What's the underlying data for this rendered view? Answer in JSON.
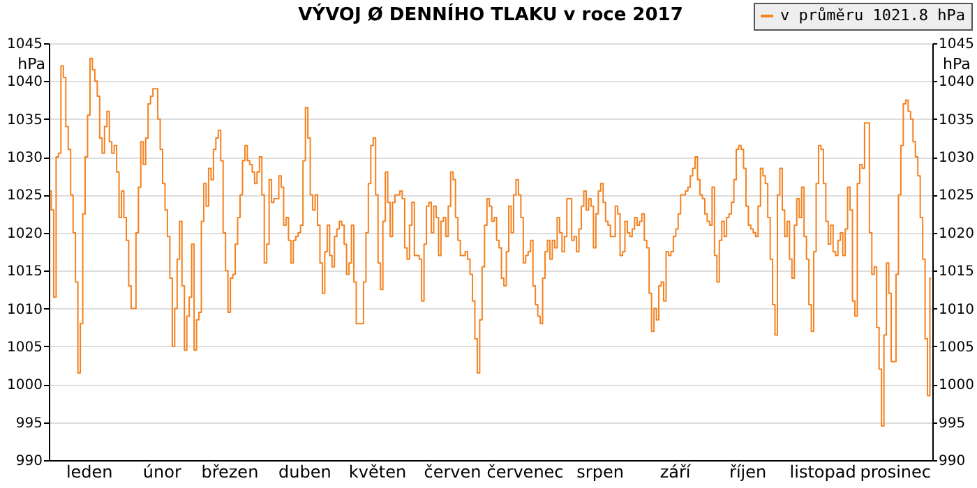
{
  "chart_data": {
    "type": "step",
    "title": "VÝVOJ Ø DENNÍHO TLAKU v roce 2017",
    "ylabel": "hPa",
    "y2label": "hPa",
    "categories": [
      null,
      null,
      null,
      null,
      null,
      null,
      null,
      null,
      null,
      null,
      null,
      null,
      null,
      null,
      null,
      null,
      "leden",
      null,
      null,
      null,
      null,
      null,
      null,
      null,
      null,
      null,
      null,
      null,
      null,
      null,
      null,
      null,
      null,
      null,
      null,
      null,
      null,
      null,
      null,
      null,
      null,
      null,
      null,
      null,
      null,
      null,
      "únor",
      null,
      null,
      null,
      null,
      null,
      null,
      null,
      null,
      null,
      null,
      null,
      null,
      null,
      null,
      null,
      null,
      null,
      null,
      null,
      null,
      null,
      null,
      null,
      null,
      null,
      null,
      null,
      "březen",
      null,
      null,
      null,
      null,
      null,
      null,
      null,
      null,
      null,
      null,
      null,
      null,
      null,
      null,
      null,
      null,
      null,
      null,
      null,
      null,
      null,
      null,
      null,
      null,
      null,
      null,
      null,
      null,
      null,
      null,
      "duben",
      null,
      null,
      null,
      null,
      null,
      null,
      null,
      null,
      null,
      null,
      null,
      null,
      null,
      null,
      null,
      null,
      null,
      null,
      null,
      null,
      null,
      null,
      null,
      null,
      null,
      null,
      null,
      null,
      null,
      "květen",
      null,
      null,
      null,
      null,
      null,
      null,
      null,
      null,
      null,
      null,
      null,
      null,
      null,
      null,
      null,
      null,
      null,
      null,
      null,
      null,
      null,
      null,
      null,
      null,
      null,
      null,
      null,
      null,
      null,
      null,
      "červen",
      null,
      null,
      null,
      null,
      null,
      null,
      null,
      null,
      null,
      null,
      null,
      null,
      null,
      null,
      null,
      null,
      null,
      null,
      null,
      null,
      null,
      null,
      null,
      null,
      null,
      null,
      null,
      null,
      null,
      "červenec",
      null,
      null,
      null,
      null,
      null,
      null,
      null,
      null,
      null,
      null,
      null,
      null,
      null,
      null,
      null,
      null,
      null,
      null,
      null,
      null,
      null,
      null,
      null,
      null,
      null,
      null,
      null,
      null,
      null,
      null,
      "srpen",
      null,
      null,
      null,
      null,
      null,
      null,
      null,
      null,
      null,
      null,
      null,
      null,
      null,
      null,
      null,
      null,
      null,
      null,
      null,
      null,
      null,
      null,
      null,
      null,
      null,
      null,
      null,
      null,
      null,
      null,
      "září",
      null,
      null,
      null,
      null,
      null,
      null,
      null,
      null,
      null,
      null,
      null,
      null,
      null,
      null,
      null,
      null,
      null,
      null,
      null,
      null,
      null,
      null,
      null,
      null,
      null,
      null,
      null,
      null,
      null,
      "říjen",
      null,
      null,
      null,
      null,
      null,
      null,
      null,
      null,
      null,
      null,
      null,
      null,
      null,
      null,
      null,
      null,
      null,
      null,
      null,
      null,
      null,
      null,
      null,
      null,
      null,
      null,
      null,
      null,
      null,
      null,
      "listopad",
      null,
      null,
      null,
      null,
      null,
      null,
      null,
      null,
      null,
      null,
      null,
      null,
      null,
      null,
      null,
      null,
      null,
      null,
      null,
      null,
      null,
      null,
      null,
      null,
      null,
      null,
      null,
      null,
      null,
      "prosinec",
      null,
      null,
      null,
      null,
      null,
      null,
      null,
      null,
      null,
      null,
      null,
      null,
      null,
      null,
      null
    ],
    "ylim": [
      990,
      1045
    ],
    "yticks": [
      990,
      995,
      1000,
      1005,
      1010,
      1015,
      1020,
      1025,
      1030,
      1035,
      1040,
      1045
    ],
    "y2lim": [
      990,
      1045
    ],
    "y2ticks": [
      990,
      995,
      1000,
      1005,
      1010,
      1015,
      1020,
      1025,
      1030,
      1035,
      1040,
      1045
    ],
    "grid": "y",
    "legend": "top right",
    "marker": "none",
    "series": [
      {
        "name": "v průměru 1021.8 hPa",
        "color": "#f58220",
        "values": [
          1025.5,
          1023,
          1011.5,
          1030,
          1030.5,
          1042,
          1040.5,
          1034,
          1031,
          1025,
          1020,
          1013.5,
          1001.5,
          1008,
          1022.5,
          1030,
          1035.5,
          1043,
          1041.5,
          1040,
          1038,
          1032.5,
          1030.5,
          1034,
          1036,
          1032,
          1030.5,
          1031.5,
          1028,
          1022,
          1025.5,
          1022,
          1019,
          1013,
          1010,
          1010,
          1020,
          1026,
          1032,
          1029,
          1032.5,
          1037,
          1038,
          1039,
          1039,
          1035,
          1031,
          1026.5,
          1023,
          1019.5,
          1014,
          1005,
          1010,
          1016.5,
          1021.5,
          1013,
          1004.5,
          1009,
          1011.5,
          1018.5,
          1004.5,
          1008.5,
          1009.5,
          1021.5,
          1026.5,
          1023.5,
          1028.5,
          1027,
          1031,
          1032.5,
          1033.5,
          1029.5,
          1020,
          1015,
          1009.5,
          1014,
          1014.5,
          1018.5,
          1022,
          1025,
          1029.5,
          1031.5,
          1029.5,
          1029,
          1028,
          1026.5,
          1028,
          1030,
          1025,
          1016,
          1018.5,
          1027,
          1024,
          1024.5,
          1024.5,
          1027.5,
          1026,
          1021,
          1022,
          1019,
          1016,
          1019,
          1019.5,
          1020,
          1021,
          1029.5,
          1036.5,
          1032.5,
          1025,
          1023,
          1025,
          1021,
          1016,
          1012,
          1017.5,
          1021,
          1017,
          1015.5,
          1019.5,
          1020.5,
          1021.5,
          1021,
          1018.5,
          1014.5,
          1016,
          1021,
          1013.5,
          1008,
          1008,
          1008,
          1013.5,
          1020,
          1026.5,
          1031.5,
          1032.5,
          1025,
          1016,
          1012.5,
          1021.5,
          1028,
          1024,
          1019.5,
          1024,
          1025,
          1025,
          1025.5,
          1024.5,
          1018,
          1016.5,
          1021,
          1024,
          1017,
          1017,
          1016.5,
          1011,
          1018.5,
          1023.5,
          1024,
          1020,
          1023.5,
          1022,
          1017,
          1021.5,
          1022,
          1019.5,
          1023.5,
          1028,
          1027,
          1022,
          1019,
          1017,
          1017,
          1017.5,
          1016.5,
          1014.5,
          1011,
          1006,
          1001.5,
          1008.5,
          1015.5,
          1021,
          1024.5,
          1023.5,
          1021.5,
          1022,
          1019,
          1018,
          1014,
          1013,
          1017.5,
          1023.5,
          1020,
          1025,
          1027,
          1025,
          1022,
          1016,
          1017,
          1017.5,
          1019,
          1013,
          1010.5,
          1009,
          1008,
          1014,
          1017.5,
          1019,
          1016.5,
          1019,
          1018,
          1022,
          1020,
          1017.5,
          1019.5,
          1024.5,
          1024.5,
          1019,
          1019.5,
          1017.5,
          1020.5,
          1023.5,
          1025.5,
          1023,
          1024.5,
          1023.5,
          1018,
          1022.5,
          1025.5,
          1026.5,
          1024,
          1021.5,
          1021,
          1019.5,
          1019.5,
          1023.5,
          1022.5,
          1017,
          1017.5,
          1021.5,
          1020,
          1019.5,
          1020.5,
          1022,
          1021,
          1021.5,
          1022.5,
          1019,
          1018,
          1012,
          1007,
          1010,
          1008.5,
          1013,
          1013.5,
          1011,
          1017.5,
          1017,
          1017.5,
          1019.5,
          1020.5,
          1022.5,
          1025,
          1025,
          1025.5,
          1026,
          1027.5,
          1028.5,
          1030,
          1027,
          1025,
          1024.5,
          1022.5,
          1021.5,
          1021,
          1026,
          1017,
          1013.5,
          1019,
          1021.5,
          1019.5,
          1022,
          1022.5,
          1024,
          1027,
          1031,
          1031.5,
          1031,
          1028.5,
          1023.5,
          1021,
          1020.5,
          1020,
          1019.5,
          1023.5,
          1028.5,
          1027.5,
          1026.5,
          1022,
          1016.5,
          1010.5,
          1006.5,
          1025,
          1028.5,
          1023,
          1019.5,
          1021.5,
          1016.5,
          1014,
          1021,
          1024.5,
          1022,
          1026,
          1019.5,
          1016.5,
          1010.5,
          1007,
          1017.5,
          1026.5,
          1031.5,
          1031,
          1026.5,
          1021.5,
          1018.5,
          1021,
          1017.5,
          1017,
          1019,
          1020,
          1017,
          1020.5,
          1026,
          1023,
          1011,
          1009,
          1026.5,
          1029,
          1028.5,
          1034.5,
          1034.5,
          1020,
          1014.5,
          1015.5,
          1007.5,
          1002,
          994.5,
          1006.5,
          1016,
          1012,
          1003,
          1003,
          1014.5,
          1025,
          1031.5,
          1037,
          1037.5,
          1036,
          1035,
          1032,
          1030,
          1027.5,
          1022,
          1016.5,
          1006,
          998.5,
          1014
        ]
      }
    ]
  }
}
